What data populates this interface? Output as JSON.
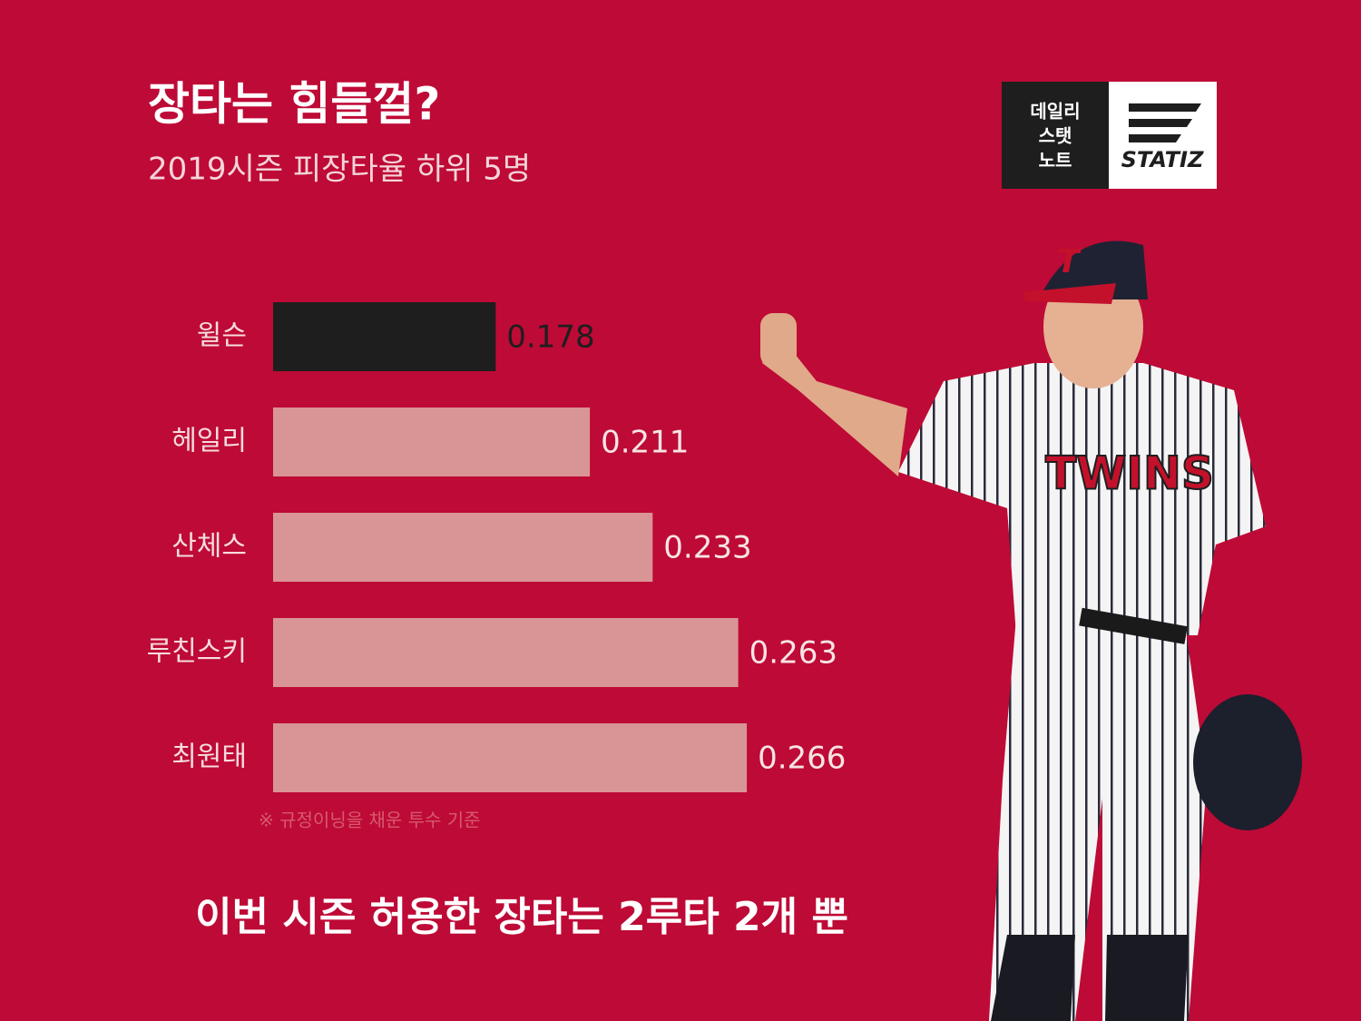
{
  "chart_data": {
    "type": "hbar",
    "title": "장타는 힘들껄?",
    "subtitle": "2019시즌 피장타율 하위 5명",
    "categories": [
      "윌슨",
      "헤일리",
      "산체스",
      "루친스키",
      "최원태"
    ],
    "values": [
      0.178,
      0.211,
      0.233,
      0.263,
      0.266
    ],
    "colors": [
      "#1e1e1e",
      "#d99595",
      "#d99595",
      "#d99595",
      "#d99595"
    ],
    "label_colors": [
      "#1e1e1e",
      "#f6e4e4",
      "#f6e4e4",
      "#f6e4e4",
      "#f6e4e4"
    ],
    "xlim": [
      0.1,
      0.3
    ],
    "note": "※ 규정이닝을 채운 투수 기준",
    "caption": "이번 시즌 허용한 장타는 2루타 2개 뿐"
  },
  "logo": {
    "lines": [
      "데일리",
      "스탯",
      "노트"
    ],
    "brand": "STATIZ"
  }
}
